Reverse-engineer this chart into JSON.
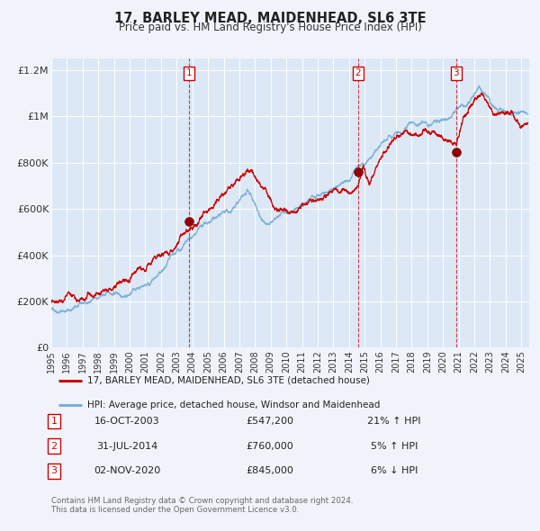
{
  "title": "17, BARLEY MEAD, MAIDENHEAD, SL6 3TE",
  "subtitle": "Price paid vs. HM Land Registry's House Price Index (HPI)",
  "background_color": "#f0f4fa",
  "plot_bg_color": "#dce8f5",
  "grid_color": "#ffffff",
  "red_line_color": "#cc0000",
  "blue_line_color": "#7aafd4",
  "ylim": [
    0,
    1250000
  ],
  "xlim_start": 1995.0,
  "xlim_end": 2025.5,
  "yticks": [
    0,
    200000,
    400000,
    600000,
    800000,
    1000000,
    1200000
  ],
  "ytick_labels": [
    "£0",
    "£200K",
    "£400K",
    "£600K",
    "£800K",
    "£1M",
    "£1.2M"
  ],
  "xticks": [
    1995,
    1996,
    1997,
    1998,
    1999,
    2000,
    2001,
    2002,
    2003,
    2004,
    2005,
    2006,
    2007,
    2008,
    2009,
    2010,
    2011,
    2012,
    2013,
    2014,
    2015,
    2016,
    2017,
    2018,
    2019,
    2020,
    2021,
    2022,
    2023,
    2024,
    2025
  ],
  "sale_marker_color": "#990000",
  "sale_marker_size": 7,
  "legend_label_red": "17, BARLEY MEAD, MAIDENHEAD, SL6 3TE (detached house)",
  "legend_label_blue": "HPI: Average price, detached house, Windsor and Maidenhead",
  "transactions": [
    {
      "num": 1,
      "date": 2003.8,
      "price": 547200,
      "pct": "21%",
      "dir": "↑",
      "label": "16-OCT-2003",
      "price_label": "£547,200"
    },
    {
      "num": 2,
      "date": 2014.58,
      "price": 760000,
      "pct": "5%",
      "dir": "↑",
      "label": "31-JUL-2014",
      "price_label": "£760,000"
    },
    {
      "num": 3,
      "date": 2020.84,
      "price": 845000,
      "pct": "6%",
      "dir": "↓",
      "label": "02-NOV-2020",
      "price_label": "£845,000"
    }
  ],
  "footnote1": "Contains HM Land Registry data © Crown copyright and database right 2024.",
  "footnote2": "This data is licensed under the Open Government Licence v3.0."
}
